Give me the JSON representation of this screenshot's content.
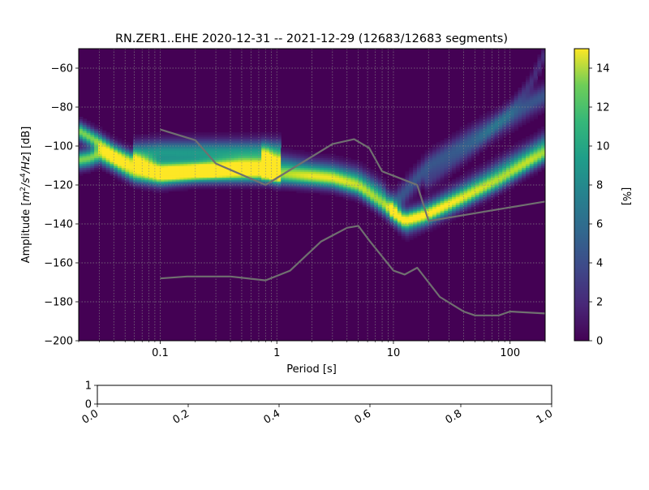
{
  "chart_data": [
    {
      "type": "heatmap",
      "title": "RN.ZER1..EHE   2020-12-31 -- 2021-12-29  (12683/12683 segments)",
      "xlabel": "Period [s]",
      "ylabel_parts": {
        "pre": "Amplitude [",
        "m": "m",
        "exp2": "2",
        "mid": "/s",
        "exp4": "4",
        "post": "/Hz",
        "tail": "] [dB]"
      },
      "x_scale": "log",
      "xlim": [
        0.02,
        200
      ],
      "ylim": [
        -200,
        -50
      ],
      "x_ticks": [
        {
          "value": 0.1,
          "label": "0.1"
        },
        {
          "value": 1,
          "label": "1"
        },
        {
          "value": 10,
          "label": "10"
        },
        {
          "value": 100,
          "label": "100"
        }
      ],
      "y_ticks": [
        {
          "value": -60,
          "label": "−60"
        },
        {
          "value": -80,
          "label": "−80"
        },
        {
          "value": -100,
          "label": "−100"
        },
        {
          "value": -120,
          "label": "−120"
        },
        {
          "value": -140,
          "label": "−140"
        },
        {
          "value": -160,
          "label": "−160"
        },
        {
          "value": -180,
          "label": "−180"
        },
        {
          "value": -200,
          "label": "−200"
        }
      ],
      "grid": true,
      "colormap": "viridis",
      "colorbar": {
        "label": "[%]",
        "range": [
          0,
          15
        ],
        "ticks": [
          {
            "value": 0,
            "label": "0"
          },
          {
            "value": 2,
            "label": "2"
          },
          {
            "value": 4,
            "label": "4"
          },
          {
            "value": 6,
            "label": "6"
          },
          {
            "value": 8,
            "label": "8"
          },
          {
            "value": 10,
            "label": "10"
          },
          {
            "value": 12,
            "label": "12"
          },
          {
            "value": 14,
            "label": "14"
          }
        ]
      },
      "density_ridges": [
        {
          "peak": 12,
          "width": 3.0,
          "path": [
            [
              0.02,
              -92
            ],
            [
              0.03,
              -98
            ],
            [
              0.04,
              -103
            ],
            [
              0.06,
              -108
            ],
            [
              0.1,
              -112
            ],
            [
              0.2,
              -112
            ],
            [
              0.5,
              -110
            ],
            [
              0.8,
              -110
            ],
            [
              1.0,
              -110
            ]
          ]
        },
        {
          "peak": 12,
          "width": 3.0,
          "path": [
            [
              0.02,
              -107
            ],
            [
              0.025,
              -106
            ],
            [
              0.03,
              -104
            ],
            [
              0.04,
              -108
            ],
            [
              0.06,
              -114
            ],
            [
              0.1,
              -116
            ],
            [
              0.2,
              -114
            ],
            [
              0.5,
              -114
            ],
            [
              0.8,
              -114
            ],
            [
              1.0,
              -114
            ]
          ]
        },
        {
          "peak": 8,
          "width": 4.0,
          "path": [
            [
              0.06,
              -104
            ],
            [
              0.1,
              -103
            ],
            [
              0.2,
              -103
            ],
            [
              0.5,
              -103
            ],
            [
              0.8,
              -103
            ],
            [
              1.0,
              -103
            ]
          ]
        },
        {
          "peak": 7,
          "width": 4.0,
          "path": [
            [
              0.8,
              -105
            ],
            [
              1,
              -110
            ],
            [
              2,
              -113
            ],
            [
              3,
              -114
            ],
            [
              5,
              -117
            ],
            [
              8,
              -125
            ],
            [
              10,
              -133
            ],
            [
              13,
              -139
            ],
            [
              17,
              -136
            ],
            [
              30,
              -128
            ],
            [
              60,
              -118
            ],
            [
              100,
              -110
            ],
            [
              150,
              -104
            ],
            [
              200,
              -99
            ]
          ]
        },
        {
          "peak": 9,
          "width": 3.0,
          "path": [
            [
              0.8,
              -112
            ],
            [
              1,
              -115
            ],
            [
              2,
              -116
            ],
            [
              3,
              -117
            ],
            [
              5,
              -121
            ],
            [
              8,
              -130
            ],
            [
              12,
              -138
            ],
            [
              20,
              -135
            ],
            [
              40,
              -127
            ],
            [
              80,
              -118
            ],
            [
              150,
              -108
            ],
            [
              200,
              -104
            ]
          ]
        },
        {
          "peak": 4,
          "width": 4.0,
          "path": [
            [
              10,
              -130
            ],
            [
              20,
              -110
            ],
            [
              50,
              -95
            ],
            [
              100,
              -85
            ],
            [
              150,
              -78
            ],
            [
              200,
              -74
            ]
          ]
        },
        {
          "peak": 2,
          "width": 3.0,
          "path": [
            [
              20,
              -118
            ],
            [
              50,
              -100
            ],
            [
              100,
              -82
            ],
            [
              150,
              -68
            ],
            [
              200,
              -52
            ]
          ]
        }
      ],
      "series": [
        {
          "points": [
            [
              0.1,
              -91.5
            ],
            [
              0.2,
              -97
            ],
            [
              0.3,
              -109
            ],
            [
              0.8,
              -120
            ],
            [
              3,
              -99
            ],
            [
              4.6,
              -96.5
            ],
            [
              6.2,
              -101
            ],
            [
              8,
              -113
            ],
            [
              16,
              -120
            ],
            [
              20,
              -138.5
            ],
            [
              200,
              -128.5
            ]
          ]
        },
        {
          "points": [
            [
              0.1,
              -168
            ],
            [
              0.17,
              -167
            ],
            [
              0.4,
              -167
            ],
            [
              0.8,
              -169
            ],
            [
              1.3,
              -164
            ],
            [
              2.4,
              -149
            ],
            [
              4,
              -142
            ],
            [
              5,
              -141
            ],
            [
              6.3,
              -149
            ],
            [
              10,
              -164
            ],
            [
              12.5,
              -166
            ],
            [
              16,
              -162.5
            ],
            [
              25,
              -177.5
            ],
            [
              40,
              -185
            ],
            [
              50,
              -187
            ],
            [
              80,
              -187
            ],
            [
              100,
              -185
            ],
            [
              200,
              -186
            ]
          ]
        }
      ]
    },
    {
      "type": "empty",
      "xlim": [
        0,
        1
      ],
      "ylim": [
        0,
        1
      ],
      "x_ticks": [
        {
          "value": 0.0,
          "label": "0.0"
        },
        {
          "value": 0.2,
          "label": "0.2"
        },
        {
          "value": 0.4,
          "label": "0.4"
        },
        {
          "value": 0.6,
          "label": "0.6"
        },
        {
          "value": 0.8,
          "label": "0.8"
        },
        {
          "value": 1.0,
          "label": "1.0"
        }
      ],
      "y_ticks": [
        {
          "value": 0,
          "label": "0"
        },
        {
          "value": 1,
          "label": "1"
        }
      ]
    }
  ]
}
